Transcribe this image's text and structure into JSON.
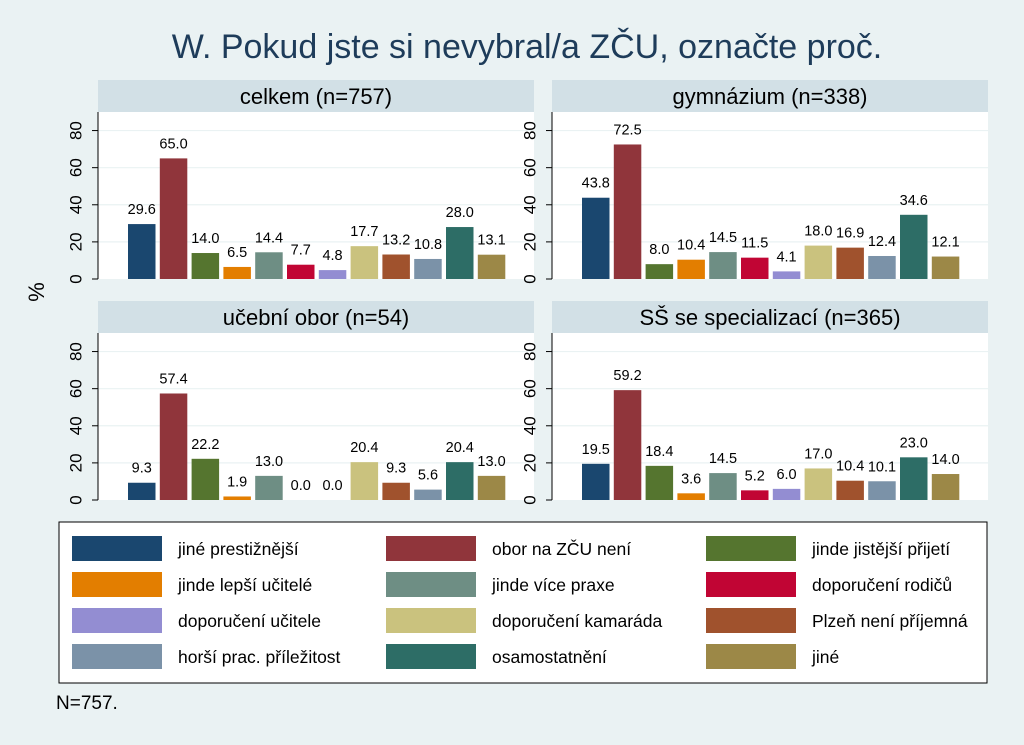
{
  "chart_data": {
    "type": "bar",
    "title": "W. Pokud jste si nevybral/a ZČU, označte proč.",
    "ylabel": "%",
    "ylim": [
      0,
      90
    ],
    "yticks": [
      0,
      20,
      40,
      60,
      80
    ],
    "note": "N=757.",
    "categories": [
      "jiné prestižnější",
      "obor na ZČU není",
      "jinde jistější přijetí",
      "jinde lepší učitelé",
      "jinde více praxe",
      "doporučení rodičů",
      "doporučení učitele",
      "doporučení kamaráda",
      "Plzeň není příjemná",
      "horší prac. příležitost",
      "osamostatnění",
      "jiné"
    ],
    "colors": [
      "#1a476f",
      "#90353b",
      "#55752f",
      "#e37e00",
      "#6e8e84",
      "#c10534",
      "#938dd2",
      "#cac27e",
      "#a0522d",
      "#7b92a8",
      "#2d6d66",
      "#9c8847"
    ],
    "panels": [
      {
        "title": "celkem (n=757)",
        "values": [
          29.6,
          65.0,
          14.0,
          6.5,
          14.4,
          7.7,
          4.8,
          17.7,
          13.2,
          10.8,
          28.0,
          13.1
        ],
        "labels": [
          "29.6",
          "65.0",
          "14.0",
          "6.5",
          "14.4",
          "7.7",
          "4.8",
          "17.7",
          "13.2",
          "10.8",
          "28.0",
          "13.1"
        ]
      },
      {
        "title": "gymnázium (n=338)",
        "values": [
          43.8,
          72.5,
          8.0,
          10.4,
          14.5,
          11.5,
          4.1,
          18.0,
          16.9,
          12.4,
          34.6,
          12.1
        ],
        "labels": [
          "43.8",
          "72.5",
          "8.0",
          "10.4",
          "14.5",
          "11.5",
          "4.1",
          "18.0",
          "16.9",
          "12.4",
          "34.6",
          "12.1"
        ]
      },
      {
        "title": "učební obor (n=54)",
        "values": [
          9.3,
          57.4,
          22.2,
          1.9,
          13.0,
          0.0,
          0.0,
          20.4,
          9.3,
          5.6,
          20.4,
          13.0
        ],
        "labels": [
          "9.3",
          "57.4",
          "22.2",
          "1.9",
          "13.0",
          "0.0",
          "0.0",
          "20.4",
          "9.3",
          "5.6",
          "20.4",
          "13.0"
        ]
      },
      {
        "title": "SŠ se specializací (n=365)",
        "values": [
          19.5,
          59.2,
          18.4,
          3.6,
          14.5,
          5.2,
          6.0,
          17.0,
          10.4,
          10.1,
          23.0,
          14.0
        ],
        "labels": [
          "19.5",
          "59.2",
          "18.4",
          "3.6",
          "14.5",
          "5.2",
          "6.0",
          "17.0",
          "10.4",
          "10.1",
          "23.0",
          "14.0"
        ]
      }
    ]
  }
}
